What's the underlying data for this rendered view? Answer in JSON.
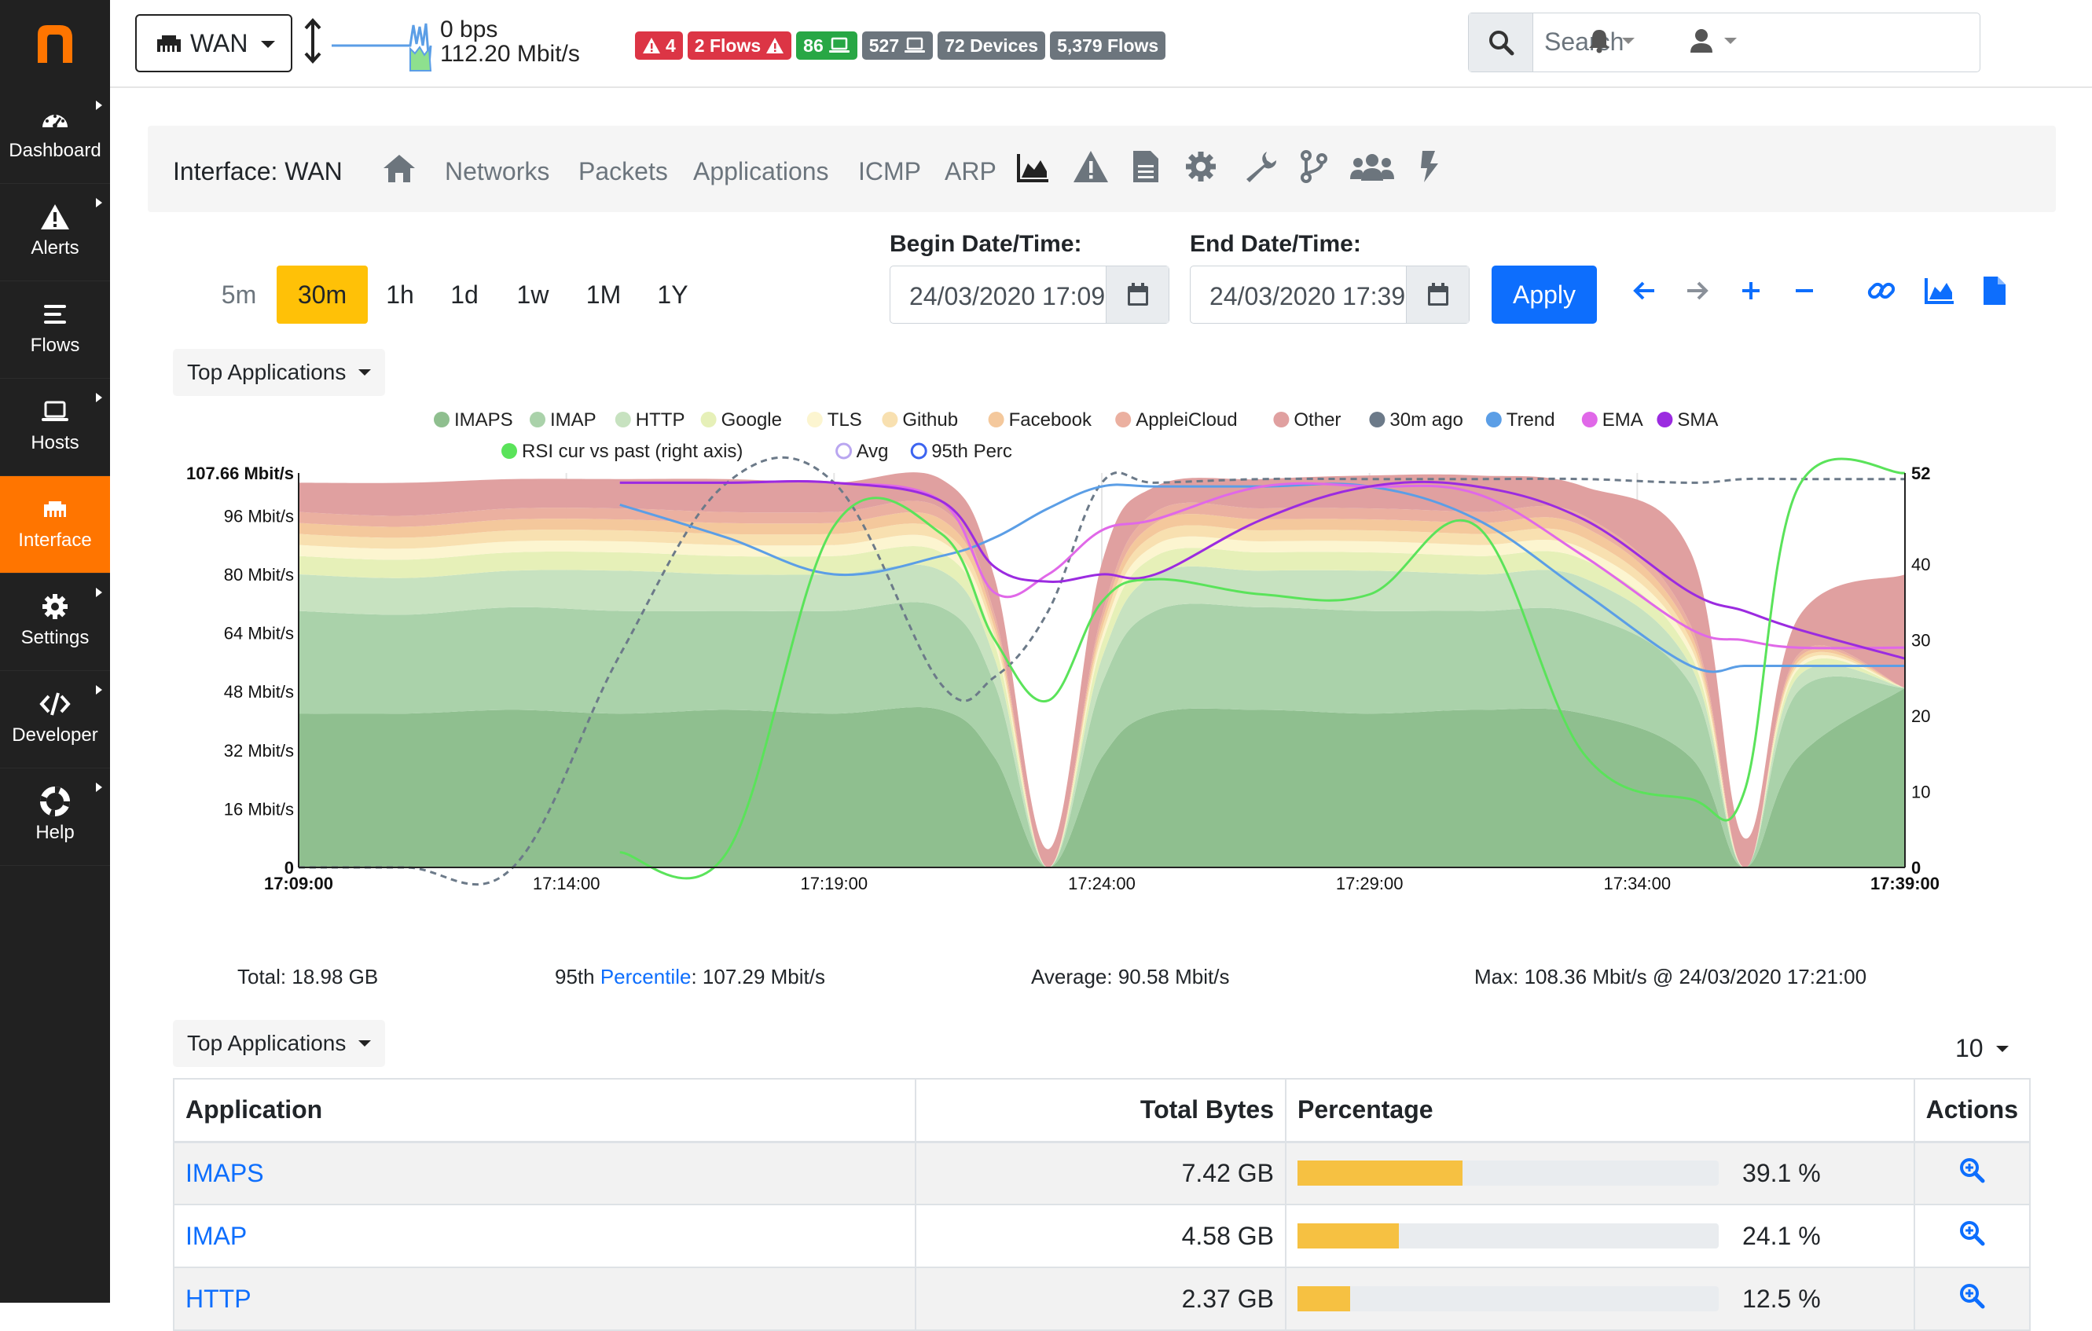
{
  "sidebar": {
    "items": [
      {
        "label": "Dashboard",
        "icon": "dashboard-icon"
      },
      {
        "label": "Alerts",
        "icon": "warning-icon"
      },
      {
        "label": "Flows",
        "icon": "flows-icon"
      },
      {
        "label": "Hosts",
        "icon": "laptop-icon"
      },
      {
        "label": "Interface",
        "icon": "ethernet-icon"
      },
      {
        "label": "Settings",
        "icon": "gear-icon"
      },
      {
        "label": "Developer",
        "icon": "code-icon"
      },
      {
        "label": "Help",
        "icon": "lifebuoy-icon"
      }
    ]
  },
  "topbar": {
    "interface": "WAN",
    "throughput_up": "0 bps",
    "throughput_down": "112.20 Mbit/s",
    "badges": {
      "alerts": "4",
      "flow_alerts": "2 Flows",
      "local_hosts": "86",
      "hosts": "527",
      "devices": "72 Devices",
      "flows": "5,379 Flows"
    },
    "search_placeholder": "Search"
  },
  "pagenav": {
    "title": "Interface: WAN",
    "links": [
      "Networks",
      "Packets",
      "Applications",
      "ICMP",
      "ARP"
    ]
  },
  "timerange": {
    "buttons": [
      "5m",
      "30m",
      "1h",
      "1d",
      "1w",
      "1M",
      "1Y"
    ],
    "selected": "30m",
    "begin_label": "Begin Date/Time:",
    "begin_value": "24/03/2020 17:09",
    "end_label": "End Date/Time:",
    "end_value": "24/03/2020 17:39",
    "apply": "Apply"
  },
  "chart_selector": "Top Applications",
  "chart_data": {
    "type": "area",
    "stacked": true,
    "x": [
      "17:09:00",
      "17:11:00",
      "17:13:00",
      "17:15:00",
      "17:17:00",
      "17:19:00",
      "17:21:00",
      "17:22:00",
      "17:23:00",
      "17:24:00",
      "17:25:00",
      "17:27:00",
      "17:29:00",
      "17:31:00",
      "17:33:00",
      "17:35:00",
      "17:36:00",
      "17:37:00",
      "17:39:00"
    ],
    "x_ticks": [
      "17:09:00",
      "17:14:00",
      "17:19:00",
      "17:24:00",
      "17:29:00",
      "17:34:00",
      "17:39:00"
    ],
    "y_ticks": [
      "0",
      "16 Mbit/s",
      "32 Mbit/s",
      "48 Mbit/s",
      "64 Mbit/s",
      "80 Mbit/s",
      "96 Mbit/s",
      "107.66 Mbit/s"
    ],
    "y2_ticks": [
      "0",
      "10",
      "20",
      "30",
      "40",
      "52"
    ],
    "ylim": [
      0,
      107.66
    ],
    "y2lim": [
      0,
      52
    ],
    "series": [
      {
        "name": "IMAPS",
        "color": "#8fbf8f",
        "values": [
          42,
          42,
          43,
          42,
          43,
          42,
          43,
          30,
          0,
          30,
          42,
          43,
          42,
          43,
          42,
          30,
          0,
          30,
          49
        ]
      },
      {
        "name": "IMAP",
        "color": "#aad2aa",
        "values": [
          28,
          27,
          28,
          28,
          27,
          28,
          28,
          20,
          0,
          20,
          28,
          28,
          28,
          27,
          27,
          20,
          0,
          18,
          0
        ]
      },
      {
        "name": "HTTP",
        "color": "#c7e2c0",
        "values": [
          10,
          10,
          10,
          11,
          10,
          10,
          10,
          7,
          0,
          7,
          10,
          10,
          11,
          10,
          10,
          5,
          0,
          4,
          0
        ]
      },
      {
        "name": "Google",
        "color": "#e6f0b8",
        "values": [
          5,
          5,
          5,
          5,
          5,
          5,
          5,
          4,
          0,
          4,
          5,
          5,
          5,
          5,
          5,
          3,
          0,
          2,
          0
        ]
      },
      {
        "name": "TLS",
        "color": "#fcf5d0",
        "values": [
          3,
          3,
          3,
          3,
          3,
          3,
          3,
          2,
          0,
          2,
          3,
          3,
          3,
          3,
          3,
          2,
          0,
          1,
          0
        ]
      },
      {
        "name": "Github",
        "color": "#f8e0b0",
        "values": [
          3,
          3,
          3,
          3,
          3,
          3,
          3,
          2,
          0,
          2,
          3,
          3,
          3,
          3,
          3,
          2,
          0,
          1,
          0
        ]
      },
      {
        "name": "Facebook",
        "color": "#f4c89c",
        "values": [
          3,
          3,
          3,
          3,
          3,
          3,
          3,
          2,
          0,
          2,
          3,
          3,
          3,
          3,
          3,
          2,
          0,
          1,
          0
        ]
      },
      {
        "name": "AppleiCloud",
        "color": "#ebb0a0",
        "values": [
          3,
          3,
          3,
          3,
          3,
          3,
          3,
          2,
          0,
          2,
          3,
          3,
          3,
          3,
          3,
          2,
          0,
          1,
          0
        ]
      },
      {
        "name": "Other",
        "color": "#e0a0a0",
        "values": [
          8,
          9,
          8,
          8,
          9,
          8,
          8,
          10,
          5,
          14,
          7,
          8,
          9,
          10,
          8,
          20,
          8,
          10,
          31
        ]
      }
    ],
    "lines": [
      {
        "name": "30m ago",
        "color": "#6c7a89",
        "dashed": true,
        "values": [
          0,
          0,
          0,
          58,
          105,
          105,
          50,
          52,
          70,
          105,
          105,
          106,
          106,
          106,
          106,
          105,
          106,
          106,
          106
        ]
      },
      {
        "name": "Trend",
        "color": "#5b9ee6",
        "values": [
          null,
          null,
          null,
          99,
          90,
          80,
          85,
          90,
          98,
          104,
          104,
          104,
          104,
          95,
          75,
          55,
          55,
          55,
          55
        ]
      },
      {
        "name": "EMA",
        "color": "#e068e8",
        "values": [
          null,
          null,
          null,
          105,
          105,
          105,
          100,
          75,
          80,
          92,
          95,
          104,
          104,
          102,
          85,
          65,
          62,
          60,
          60
        ]
      },
      {
        "name": "SMA",
        "color": "#9b2be0",
        "values": [
          null,
          null,
          null,
          105,
          105,
          105,
          100,
          82,
          78,
          80,
          80,
          95,
          104,
          104,
          95,
          75,
          70,
          65,
          57
        ]
      },
      {
        "name": "RSI cur vs past (right axis)",
        "color": "#5ae35a",
        "axis": "right",
        "values": [
          null,
          null,
          null,
          2,
          2,
          45,
          44,
          30,
          22,
          35,
          38,
          36,
          36,
          45,
          15,
          9,
          10,
          50,
          52
        ]
      }
    ],
    "legend_extra": [
      "Avg",
      "95th Perc"
    ],
    "legend_position": "top"
  },
  "stats": {
    "total": "Total: 18.98 GB",
    "pct_prefix": "95th ",
    "pct_link": "Percentile",
    "pct_value": ": 107.29 Mbit/s",
    "average": "Average: 90.58 Mbit/s",
    "max": "Max: 108.36 Mbit/s @ 24/03/2020 17:21:00"
  },
  "table_selector": "Top Applications",
  "table": {
    "page_size": "10",
    "headers": [
      "Application",
      "Total Bytes",
      "Percentage",
      "Actions"
    ],
    "rows": [
      {
        "app": "IMAPS",
        "bytes": "7.42 GB",
        "pct": "39.1 %",
        "pct_value": 0.391
      },
      {
        "app": "IMAP",
        "bytes": "4.58 GB",
        "pct": "24.1 %",
        "pct_value": 0.241
      },
      {
        "app": "HTTP",
        "bytes": "2.37 GB",
        "pct": "12.5 %",
        "pct_value": 0.125
      }
    ]
  },
  "colors": {
    "accent": "#ff7500",
    "primary": "#0d6efd",
    "sidebar": "#212121"
  }
}
